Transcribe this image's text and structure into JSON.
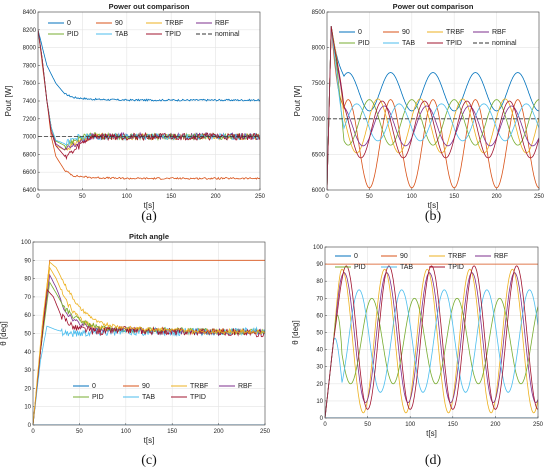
{
  "chart_data": [
    {
      "type": "line",
      "title": "Power out comparison",
      "caption": "(a)",
      "xlabel": "t[s]",
      "ylabel": "Pout [W]",
      "xlim": [
        0,
        250
      ],
      "ylim": [
        6400,
        8400
      ],
      "xticks": [
        0,
        50,
        100,
        150,
        200,
        250
      ],
      "yticks": [
        6400,
        6600,
        6800,
        7000,
        7200,
        7400,
        7600,
        7800,
        8000,
        8200,
        8400
      ],
      "grid": true,
      "legend_placement": "top",
      "legend_rows": [
        [
          "0",
          "90",
          "TRBF",
          "RBF"
        ],
        [
          "PID",
          "TAB",
          "TPID",
          "nominal"
        ]
      ],
      "series": [
        {
          "name": "0",
          "color": "#0072BD",
          "points": [
            [
              0,
              8200
            ],
            [
              5,
              8000
            ],
            [
              10,
              7800
            ],
            [
              20,
              7600
            ],
            [
              30,
              7480
            ],
            [
              40,
              7440
            ],
            [
              60,
              7420
            ],
            [
              100,
              7410
            ],
            [
              150,
              7410
            ],
            [
              200,
              7410
            ],
            [
              250,
              7410
            ]
          ],
          "noise": 10
        },
        {
          "name": "90",
          "color": "#D95319",
          "points": [
            [
              0,
              8200
            ],
            [
              5,
              7800
            ],
            [
              10,
              7400
            ],
            [
              15,
              7000
            ],
            [
              20,
              6780
            ],
            [
              30,
              6620
            ],
            [
              40,
              6560
            ],
            [
              60,
              6540
            ],
            [
              100,
              6530
            ],
            [
              150,
              6530
            ],
            [
              200,
              6530
            ],
            [
              250,
              6530
            ]
          ],
          "noise": 10
        },
        {
          "name": "TRBF",
          "color": "#EDB120",
          "points": [
            [
              0,
              8200
            ],
            [
              5,
              7850
            ],
            [
              10,
              7400
            ],
            [
              15,
              7100
            ],
            [
              20,
              6900
            ],
            [
              30,
              6850
            ],
            [
              45,
              6950
            ],
            [
              60,
              7000
            ],
            [
              100,
              7000
            ],
            [
              150,
              7000
            ],
            [
              200,
              7000
            ],
            [
              250,
              7000
            ]
          ],
          "noise": 35
        },
        {
          "name": "RBF",
          "color": "#7E2F8E",
          "points": [
            [
              0,
              8200
            ],
            [
              5,
              7850
            ],
            [
              10,
              7400
            ],
            [
              15,
              7100
            ],
            [
              20,
              6920
            ],
            [
              30,
              6850
            ],
            [
              45,
              6920
            ],
            [
              60,
              7000
            ],
            [
              100,
              7010
            ],
            [
              150,
              7000
            ],
            [
              200,
              7010
            ],
            [
              250,
              7000
            ]
          ],
          "noise": 35
        },
        {
          "name": "PID",
          "color": "#77AC30",
          "points": [
            [
              0,
              8200
            ],
            [
              5,
              7850
            ],
            [
              10,
              7400
            ],
            [
              15,
              7100
            ],
            [
              20,
              6950
            ],
            [
              30,
              6900
            ],
            [
              45,
              6980
            ],
            [
              60,
              7010
            ],
            [
              100,
              7000
            ],
            [
              150,
              7000
            ],
            [
              200,
              7000
            ],
            [
              250,
              7000
            ]
          ],
          "noise": 35
        },
        {
          "name": "TAB",
          "color": "#4DBEEE",
          "points": [
            [
              0,
              8200
            ],
            [
              5,
              7850
            ],
            [
              10,
              7400
            ],
            [
              15,
              7100
            ],
            [
              20,
              6960
            ],
            [
              30,
              6920
            ],
            [
              45,
              6990
            ],
            [
              60,
              7000
            ],
            [
              100,
              7000
            ],
            [
              150,
              7000
            ],
            [
              200,
              7000
            ],
            [
              250,
              7000
            ]
          ],
          "noise": 35
        },
        {
          "name": "TPID",
          "color": "#A2142F",
          "points": [
            [
              0,
              8200
            ],
            [
              5,
              7850
            ],
            [
              10,
              7400
            ],
            [
              15,
              7050
            ],
            [
              20,
              6900
            ],
            [
              30,
              6780
            ],
            [
              40,
              6830
            ],
            [
              50,
              6930
            ],
            [
              60,
              7000
            ],
            [
              100,
              7000
            ],
            [
              150,
              7000
            ],
            [
              200,
              7000
            ],
            [
              250,
              7000
            ]
          ],
          "noise": 40
        },
        {
          "name": "nominal",
          "color": "#333333",
          "dash": true,
          "points": [
            [
              0,
              7000
            ],
            [
              250,
              7000
            ]
          ],
          "noise": 0
        }
      ]
    },
    {
      "type": "line",
      "title": "Power out comparison",
      "caption": "(b)",
      "xlabel": "t[s]",
      "ylabel": "Pout [W]",
      "xlim": [
        0,
        250
      ],
      "ylim": [
        6000,
        8500
      ],
      "xticks": [
        0,
        50,
        100,
        150,
        200,
        250
      ],
      "yticks": [
        6000,
        6500,
        7000,
        7500,
        8000,
        8500
      ],
      "grid": true,
      "legend_placement": "top",
      "legend_rows": [
        [
          "0",
          "90",
          "TRBF",
          "RBF"
        ],
        [
          "PID",
          "TAB",
          "TPID",
          "nominal"
        ]
      ],
      "period": 50,
      "series": [
        {
          "name": "0",
          "color": "#0072BD",
          "osc": {
            "center": 7380,
            "amp": 270,
            "phase": 0
          }
        },
        {
          "name": "90",
          "color": "#D95319",
          "osc": {
            "center": 6650,
            "amp": 620,
            "phase": 0
          }
        },
        {
          "name": "TRBF",
          "color": "#EDB120",
          "osc": {
            "center": 6900,
            "amp": 380,
            "phase": 0.3
          }
        },
        {
          "name": "RBF",
          "color": "#7E2F8E",
          "osc": {
            "center": 6900,
            "amp": 280,
            "phase": 0.15
          }
        },
        {
          "name": "PID",
          "color": "#77AC30",
          "osc": {
            "center": 6950,
            "amp": 320,
            "phase": 0.5
          }
        },
        {
          "name": "TAB",
          "color": "#4DBEEE",
          "osc": {
            "center": 6950,
            "amp": 260,
            "phase": 0.8
          }
        },
        {
          "name": "TPID",
          "color": "#A2142F",
          "osc": {
            "center": 6850,
            "amp": 400,
            "phase": 0.2
          }
        },
        {
          "name": "nominal",
          "color": "#333333",
          "dash": true,
          "const": 7000
        }
      ]
    },
    {
      "type": "line",
      "title": "Pitch angle",
      "caption": "(c)",
      "xlabel": "t[s]",
      "ylabel": "θ [deg]",
      "xlim": [
        0,
        250
      ],
      "ylim": [
        0,
        100
      ],
      "xticks": [
        0,
        50,
        100,
        150,
        200,
        250
      ],
      "yticks": [
        0,
        10,
        20,
        30,
        40,
        50,
        60,
        70,
        80,
        90,
        100
      ],
      "grid": true,
      "legend_placement": "bottom",
      "legend_rows": [
        [
          "0",
          "90",
          "TRBF",
          "RBF"
        ],
        [
          "PID",
          "TAB",
          "TPID"
        ]
      ],
      "series": [
        {
          "name": "0",
          "color": "#0072BD",
          "points": [
            [
              0,
              0
            ],
            [
              250,
              0
            ]
          ],
          "noise": 0
        },
        {
          "name": "90",
          "color": "#D95319",
          "points": [
            [
              0,
              0
            ],
            [
              10,
              50
            ],
            [
              18,
              90
            ],
            [
              250,
              90
            ]
          ],
          "noise": 0
        },
        {
          "name": "TRBF",
          "color": "#EDB120",
          "points": [
            [
              0,
              0
            ],
            [
              8,
              40
            ],
            [
              18,
              86
            ],
            [
              25,
              80
            ],
            [
              35,
              68
            ],
            [
              50,
              58
            ],
            [
              70,
              53
            ],
            [
              100,
              52
            ],
            [
              150,
              51
            ],
            [
              200,
              51
            ],
            [
              250,
              51
            ]
          ],
          "noise": 1.5
        },
        {
          "name": "RBF",
          "color": "#7E2F8E",
          "points": [
            [
              0,
              0
            ],
            [
              8,
              40
            ],
            [
              18,
              82
            ],
            [
              25,
              75
            ],
            [
              35,
              62
            ],
            [
              50,
              55
            ],
            [
              70,
              52
            ],
            [
              100,
              52
            ],
            [
              150,
              51
            ],
            [
              200,
              51
            ],
            [
              250,
              51
            ]
          ],
          "noise": 1.5
        },
        {
          "name": "PID",
          "color": "#77AC30",
          "points": [
            [
              0,
              0
            ],
            [
              8,
              40
            ],
            [
              18,
              78
            ],
            [
              25,
              72
            ],
            [
              35,
              63
            ],
            [
              50,
              57
            ],
            [
              70,
              53
            ],
            [
              100,
              52
            ],
            [
              150,
              52
            ],
            [
              200,
              51
            ],
            [
              250,
              51
            ]
          ],
          "noise": 1.5
        },
        {
          "name": "TAB",
          "color": "#4DBEEE",
          "points": [
            [
              0,
              0
            ],
            [
              8,
              35
            ],
            [
              15,
              54
            ],
            [
              25,
              52
            ],
            [
              40,
              50
            ],
            [
              70,
              51
            ],
            [
              100,
              51
            ],
            [
              150,
              51
            ],
            [
              200,
              51
            ],
            [
              250,
              51
            ]
          ],
          "noise": 2.2
        },
        {
          "name": "TPID",
          "color": "#A2142F",
          "points": [
            [
              0,
              0
            ],
            [
              8,
              40
            ],
            [
              15,
              74
            ],
            [
              22,
              70
            ],
            [
              30,
              60
            ],
            [
              45,
              53
            ],
            [
              70,
              51
            ],
            [
              100,
              52
            ],
            [
              150,
              51
            ],
            [
              200,
              51
            ],
            [
              250,
              50
            ]
          ],
          "noise": 2
        },
        {
          "name": "",
          "color": "#EDB120",
          "points": [
            [
              0,
              0
            ],
            [
              10,
              55
            ],
            [
              18,
              89
            ],
            [
              25,
              86
            ],
            [
              35,
              76
            ],
            [
              50,
              64
            ],
            [
              70,
              56
            ],
            [
              100,
              53
            ],
            [
              150,
              52
            ],
            [
              200,
              51
            ],
            [
              250,
              51
            ]
          ],
          "noise": 1
        }
      ]
    },
    {
      "type": "line",
      "title": "",
      "caption": "(d)",
      "xlabel": "t[s]",
      "ylabel": "θ [deg]",
      "xlim": [
        0,
        250
      ],
      "ylim": [
        0,
        100
      ],
      "xticks": [
        0,
        50,
        100,
        150,
        200,
        250
      ],
      "yticks": [
        0,
        10,
        20,
        30,
        40,
        50,
        60,
        70,
        80,
        90,
        100
      ],
      "grid": true,
      "legend_placement": "top",
      "legend_rows": [
        [
          "0",
          "90",
          "TRBF",
          "RBF"
        ],
        [
          "PID",
          "TAB",
          "TPID"
        ]
      ],
      "period": 50,
      "series": [
        {
          "name": "0",
          "color": "#0072BD",
          "const": 0
        },
        {
          "name": "90",
          "color": "#D95319",
          "const": 90
        },
        {
          "name": "TRBF",
          "color": "#EDB120",
          "osc": {
            "center": 45,
            "amp": 42,
            "phase": 0.1
          }
        },
        {
          "name": "RBF",
          "color": "#7E2F8E",
          "osc": {
            "center": 47,
            "amp": 38,
            "phase": 0.05
          }
        },
        {
          "name": "PID",
          "color": "#77AC30",
          "osc": {
            "center": 45,
            "amp": 25,
            "phase": 0.4
          }
        },
        {
          "name": "TAB",
          "color": "#4DBEEE",
          "osc": {
            "center": 45,
            "amp": 30,
            "phase": 0.7
          }
        },
        {
          "name": "TPID",
          "color": "#A2142F",
          "osc": {
            "center": 47,
            "amp": 42,
            "phase": 0
          }
        }
      ]
    }
  ]
}
